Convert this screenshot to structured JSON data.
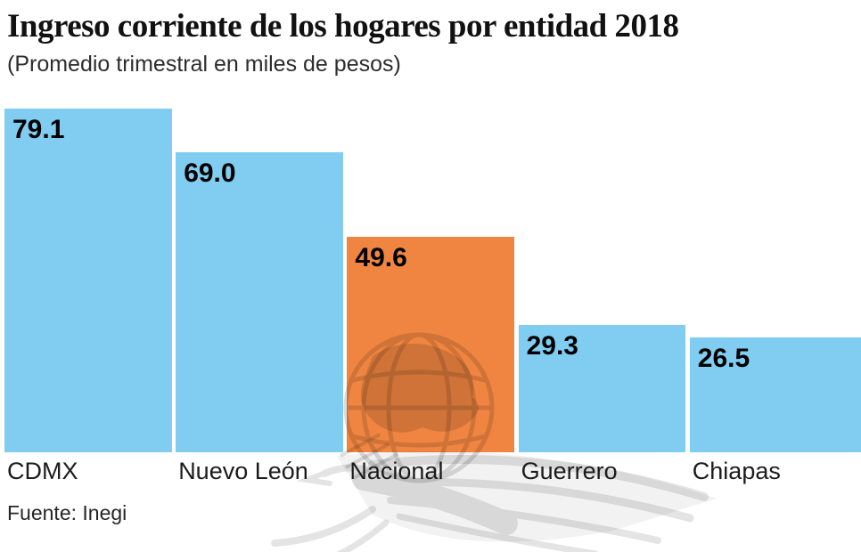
{
  "chart_data": {
    "type": "bar",
    "title": "Ingreso corriente de los hogares por entidad 2018",
    "subtitle": "(Promedio trimestral en miles de pesos)",
    "source": "Fuente: Inegi",
    "categories": [
      "CDMX",
      "Nuevo León",
      "Nacional",
      "Guerrero",
      "Chiapas"
    ],
    "values": [
      79.1,
      69.0,
      49.6,
      29.3,
      26.5
    ],
    "value_labels": [
      "79.1",
      "69.0",
      "49.6",
      "29.3",
      "26.5"
    ],
    "highlight_index": 2,
    "highlight_category": "Nacional",
    "bar_colors": [
      "#80CDF1",
      "#80CDF1",
      "#EF8541",
      "#80CDF1",
      "#80CDF1"
    ],
    "ylim": [
      0,
      79.1
    ],
    "orientation": "vertical",
    "grid": false,
    "legend": "none",
    "axes_shown": false,
    "value_label_position": "inside-top-left",
    "category_label_position": "below-bar-left-aligned"
  },
  "colors": {
    "bar_blue": "#80CDF1",
    "bar_orange": "#EF8541",
    "background": "#FFFFFF",
    "title_text": "#111111",
    "label_text": "#1C1C1C",
    "watermark_ink": "#000000"
  },
  "watermark": {
    "icon": "eagle-globe-watermark"
  }
}
